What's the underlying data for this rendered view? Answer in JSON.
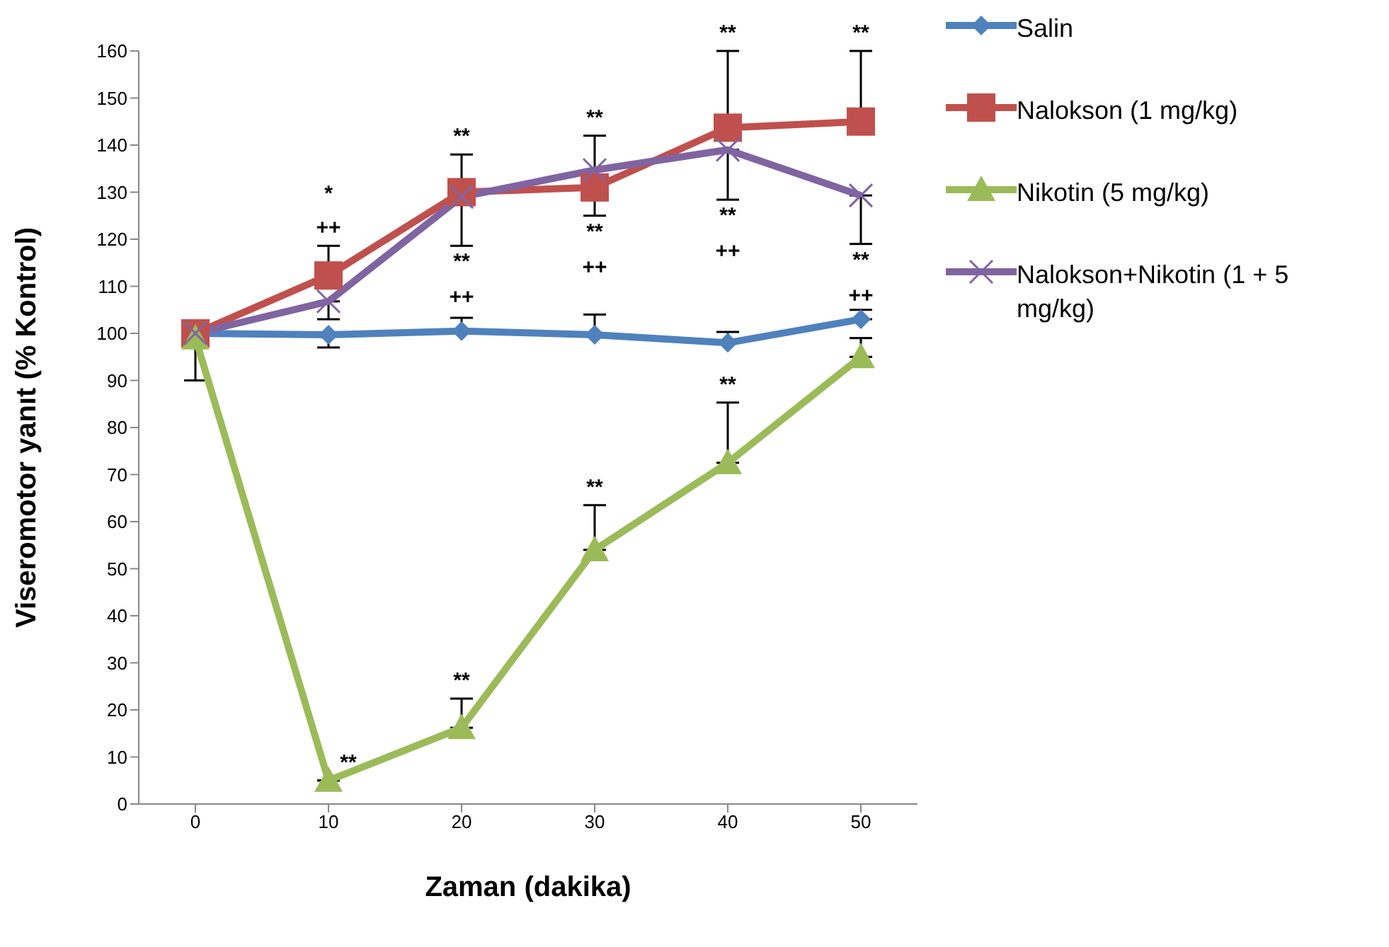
{
  "chart_data": {
    "type": "line",
    "xlabel": "Zaman (dakika)",
    "ylabel": "Viseromotor yanıt (% Kontrol)",
    "categories": [
      "0",
      "10",
      "20",
      "30",
      "40",
      "50"
    ],
    "ylim": [
      0,
      160
    ],
    "yticks": [
      0,
      10,
      20,
      30,
      40,
      50,
      60,
      70,
      80,
      90,
      100,
      110,
      120,
      130,
      140,
      150,
      160
    ],
    "grid": false,
    "legend": "top right",
    "series": [
      {
        "name": "Salin",
        "color": "#4f81bd",
        "marker": "diamond",
        "values": [
          100,
          99.7,
          100.5,
          99.7,
          98,
          103
        ],
        "errors": [
          [
            90,
            100
          ],
          [
            97,
            99.7
          ],
          [
            100.5,
            103.3
          ],
          [
            99.7,
            104
          ],
          [
            98,
            100.3
          ],
          [
            103,
            105
          ]
        ]
      },
      {
        "name": "Nalokson (1 mg/kg)",
        "color": "#c0504d",
        "marker": "square",
        "values": [
          100,
          112.3,
          130,
          131,
          143.7,
          145
        ],
        "errors": [
          null,
          [
            112.3,
            118.6
          ],
          [
            130,
            138
          ],
          [
            125,
            131
          ],
          [
            143.7,
            160
          ],
          [
            145,
            160
          ]
        ]
      },
      {
        "name": "Nikotin (5 mg/kg)",
        "color": "#9bbb59",
        "marker": "triangle",
        "values": [
          99,
          5,
          16.2,
          54,
          72.5,
          95
        ],
        "errors": [
          null,
          null,
          [
            16.2,
            22.4
          ],
          [
            54,
            63.5
          ],
          [
            72.5,
            85.3
          ],
          [
            95,
            99
          ]
        ]
      },
      {
        "name": "Nalokson+Nikotin (1 + 5 mg/kg)",
        "color": "#8064a2",
        "marker": "cross",
        "values": [
          100,
          106.8,
          129,
          134.7,
          139,
          129.3
        ],
        "errors": [
          null,
          [
            103,
            106.8
          ],
          [
            118.6,
            129
          ],
          [
            134.7,
            142
          ],
          [
            128.4,
            139
          ],
          [
            119,
            129.3
          ]
        ]
      }
    ],
    "annotations": [
      {
        "text": "++",
        "x": "10",
        "y": 118.6
      },
      {
        "text": "*",
        "x": "10",
        "y": 118.6
      },
      {
        "text": "**",
        "x": "20",
        "y": 138
      },
      {
        "text": "**",
        "x": "20",
        "y": 118.6
      },
      {
        "text": "++",
        "x": "20",
        "y": 118.6
      },
      {
        "text": "**",
        "x": "30",
        "y": 142
      },
      {
        "text": "**",
        "x": "30",
        "y": 125
      },
      {
        "text": "++",
        "x": "30",
        "y": 125
      },
      {
        "text": "**",
        "x": "40",
        "y": 160
      },
      {
        "text": "**",
        "x": "40",
        "y": 128.4
      },
      {
        "text": "++",
        "x": "40",
        "y": 128.4
      },
      {
        "text": "**",
        "x": "50",
        "y": 160
      },
      {
        "text": "**",
        "x": "50",
        "y": 119
      },
      {
        "text": "++",
        "x": "50",
        "y": 119
      },
      {
        "text": "**",
        "x": "10",
        "y": 5
      },
      {
        "text": "**",
        "x": "20",
        "y": 22.4
      },
      {
        "text": "**",
        "x": "30",
        "y": 63.5
      },
      {
        "text": "**",
        "x": "40",
        "y": 85.3
      }
    ]
  }
}
